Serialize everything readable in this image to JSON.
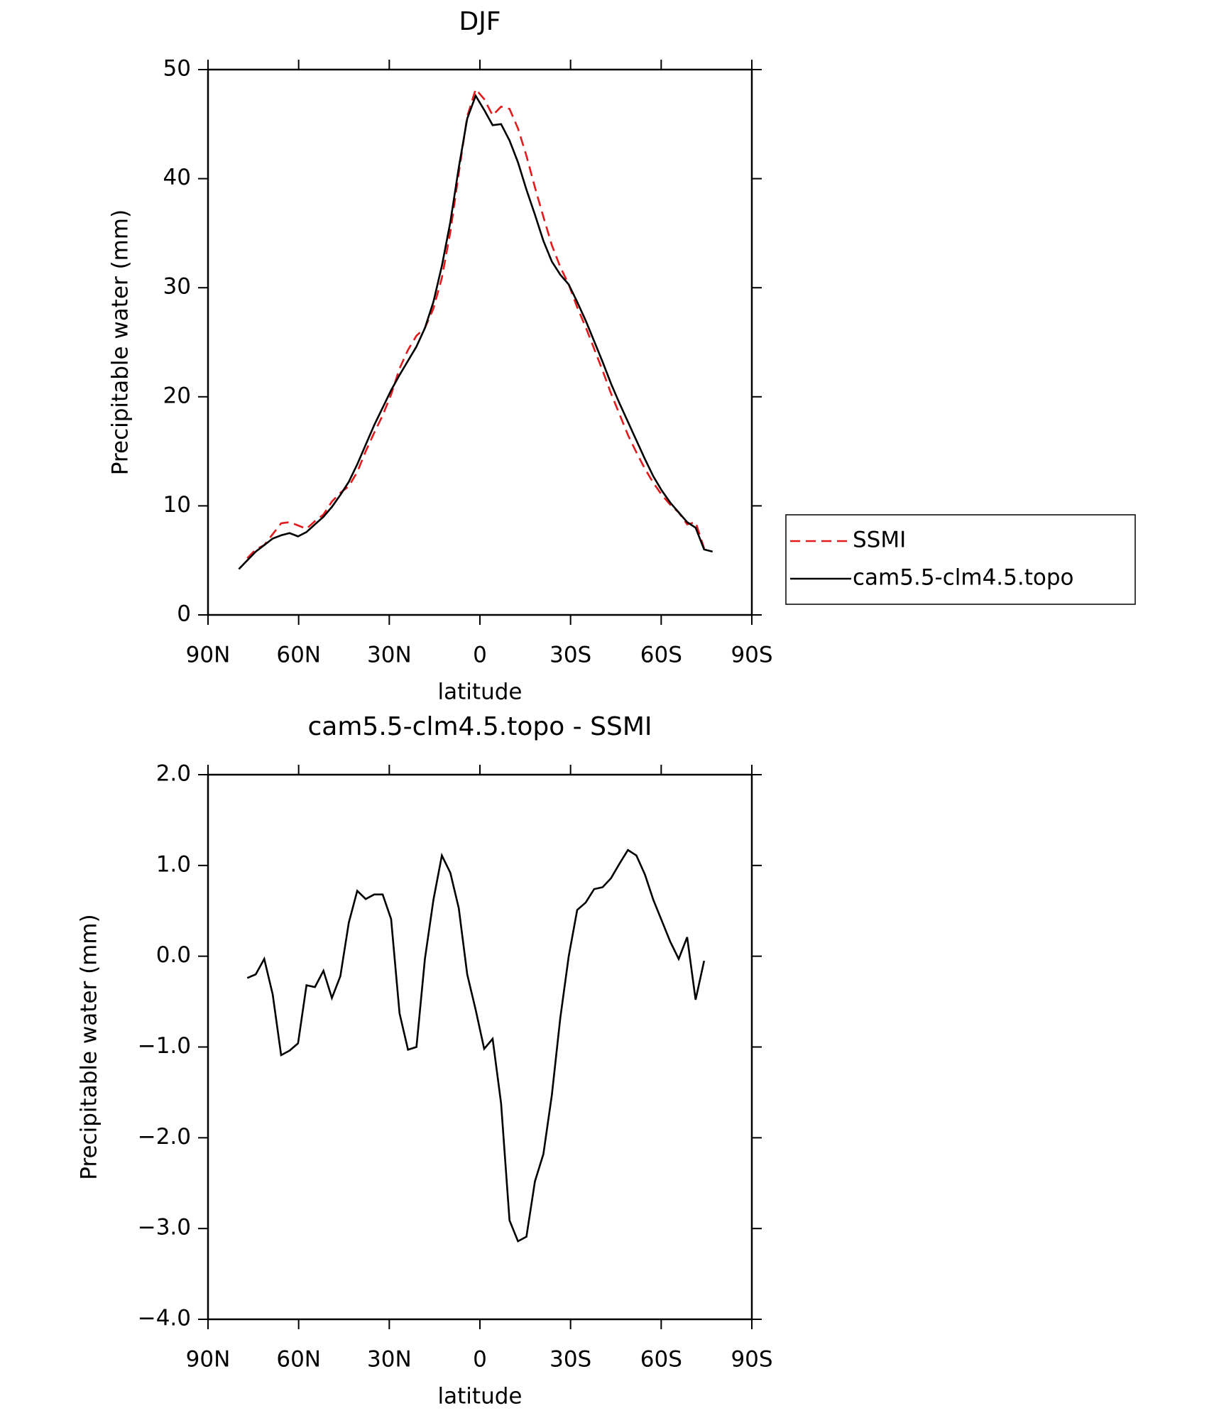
{
  "chart_data": [
    {
      "type": "line",
      "title": "DJF",
      "xlabel": "latitude",
      "ylabel": "Precipitable water (mm)",
      "x": [
        79.8,
        77,
        74.2,
        71.4,
        68.6,
        65.8,
        63,
        60.2,
        57.4,
        54.6,
        51.8,
        49,
        46.2,
        43.4,
        40.6,
        37.8,
        35,
        32.2,
        29.4,
        26.6,
        23.8,
        21,
        18.2,
        15.4,
        12.6,
        9.8,
        7,
        4.2,
        1.4,
        -1.4,
        -4.2,
        -7,
        -9.8,
        -12.6,
        -15.4,
        -18.2,
        -21,
        -23.8,
        -26.6,
        -29.4,
        -32.2,
        -35,
        -37.8,
        -40.6,
        -43.4,
        -46.2,
        -49,
        -51.8,
        -54.6,
        -57.4,
        -60.2,
        -63,
        -65.8,
        -68.6,
        -71.4,
        -74.2,
        -77
      ],
      "series": [
        {
          "name": "SSMI",
          "color": "#e41a1c",
          "dashed": true,
          "values": [
            null,
            5.2,
            6.0,
            6.4,
            7.4,
            8.4,
            8.5,
            8.2,
            7.9,
            8.6,
            9.2,
            10.4,
            11.2,
            11.8,
            13.1,
            15.0,
            16.7,
            18.3,
            20.2,
            22.6,
            24.3,
            25.6,
            26.3,
            28.1,
            30.9,
            35.1,
            40.5,
            45.7,
            48.2,
            47.3,
            45.8,
            46.6,
            46.4,
            44.6,
            42.1,
            39.2,
            36.5,
            33.9,
            31.9,
            30.3,
            28.2,
            26.4,
            24.4,
            22.4,
            20.3,
            18.4,
            16.5,
            14.9,
            13.4,
            12.1,
            11.0,
            10.1,
            9.4,
            8.3,
            8.5,
            6.1,
            null
          ]
        },
        {
          "name": "cam5.5-clm4.5.topo",
          "color": "#000000",
          "dashed": false,
          "values": [
            4.2,
            5.0,
            5.8,
            6.4,
            7.0,
            7.3,
            7.5,
            7.2,
            7.6,
            8.3,
            9.0,
            9.9,
            11.0,
            12.2,
            13.8,
            15.6,
            17.4,
            19.0,
            20.6,
            22.0,
            23.3,
            24.6,
            26.3,
            28.7,
            32.0,
            36.0,
            41.0,
            45.5,
            47.6,
            46.3,
            44.9,
            45.0,
            43.5,
            41.5,
            39.0,
            36.7,
            34.3,
            32.4,
            31.2,
            30.3,
            28.7,
            27.0,
            25.1,
            23.2,
            21.2,
            19.4,
            17.7,
            16.0,
            14.3,
            12.7,
            11.4,
            10.3,
            9.4,
            8.5,
            8.0,
            6.0,
            5.8
          ]
        }
      ],
      "xlim": [
        90,
        -90
      ],
      "xticks": [
        {
          "value": 90,
          "label": "90N"
        },
        {
          "value": 60,
          "label": "60N"
        },
        {
          "value": 30,
          "label": "30N"
        },
        0,
        {
          "value": -30,
          "label": "30S"
        },
        {
          "value": -60,
          "label": "60S"
        },
        {
          "value": -90,
          "label": "90S"
        }
      ],
      "ylim": [
        0,
        50
      ],
      "yticks": [
        0,
        10,
        20,
        30,
        40,
        50
      ],
      "legend": "outside-right"
    },
    {
      "type": "line",
      "title": "cam5.5-clm4.5.topo - SSMI",
      "xlabel": "latitude",
      "ylabel": "Precipitable water (mm)",
      "x": [
        79.8,
        77,
        74.2,
        71.4,
        68.6,
        65.8,
        63,
        60.2,
        57.4,
        54.6,
        51.8,
        49,
        46.2,
        43.4,
        40.6,
        37.8,
        35,
        32.2,
        29.4,
        26.6,
        23.8,
        21,
        18.2,
        15.4,
        12.6,
        9.8,
        7,
        4.2,
        1.4,
        -1.4,
        -4.2,
        -7,
        -9.8,
        -12.6,
        -15.4,
        -18.2,
        -21,
        -23.8,
        -26.6,
        -29.4,
        -32.2,
        -35,
        -37.8,
        -40.6,
        -43.4,
        -46.2,
        -49,
        -51.8,
        -54.6,
        -57.4,
        -60.2,
        -63,
        -65.8,
        -68.6,
        -71.4,
        -74.2,
        -77
      ],
      "series": [
        {
          "color": "#000000",
          "dashed": false,
          "values": [
            null,
            -0.24,
            -0.2,
            -0.03,
            -0.42,
            -1.09,
            -1.04,
            -0.96,
            -0.32,
            -0.34,
            -0.16,
            -0.46,
            -0.22,
            0.37,
            0.72,
            0.63,
            0.68,
            0.68,
            0.41,
            -0.63,
            -1.03,
            -1.0,
            -0.03,
            0.62,
            1.11,
            0.92,
            0.53,
            -0.2,
            -0.59,
            -1.02,
            -0.91,
            -1.62,
            -2.91,
            -3.14,
            -3.09,
            -2.48,
            -2.18,
            -1.53,
            -0.68,
            0.0,
            0.51,
            0.59,
            0.74,
            0.76,
            0.86,
            1.02,
            1.17,
            1.11,
            0.9,
            0.62,
            0.39,
            0.16,
            -0.03,
            0.21,
            -0.48,
            -0.05,
            null
          ]
        }
      ],
      "xlim": [
        90,
        -90
      ],
      "xticks": [
        {
          "value": 90,
          "label": "90N"
        },
        {
          "value": 60,
          "label": "60N"
        },
        {
          "value": 30,
          "label": "30N"
        },
        0,
        {
          "value": -30,
          "label": "30S"
        },
        {
          "value": -60,
          "label": "60S"
        },
        {
          "value": -90,
          "label": "90S"
        }
      ],
      "ylim": [
        -4,
        2
      ],
      "yticks": [
        {
          "value": -4,
          "label": "−4.0"
        },
        {
          "value": -3,
          "label": "−3.0"
        },
        {
          "value": -2,
          "label": "−2.0"
        },
        {
          "value": -1,
          "label": "−1.0"
        },
        {
          "value": 0,
          "label": "0.0"
        },
        {
          "value": 1,
          "label": "1.0"
        },
        {
          "value": 2,
          "label": "2.0"
        }
      ]
    }
  ]
}
